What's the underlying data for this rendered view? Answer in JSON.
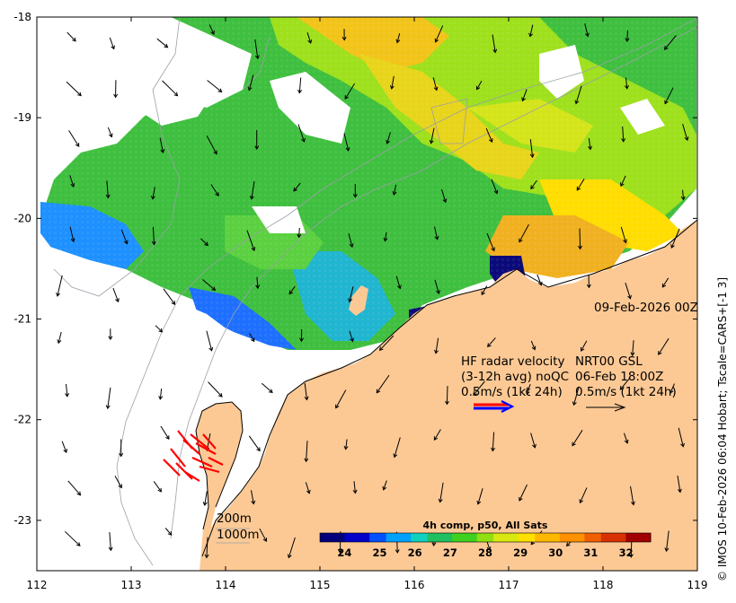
{
  "map": {
    "x_ticks": [
      "112",
      "113",
      "114",
      "115",
      "116",
      "117",
      "118",
      "119"
    ],
    "y_ticks": [
      "-18",
      "-19",
      "-20",
      "-21",
      "-22",
      "-23"
    ],
    "x_range": [
      112,
      119
    ],
    "y_range": [
      -23.5,
      -18
    ],
    "date_label": "09-Feb-2026 00Z",
    "hf_title": "HF radar velocity",
    "hf_avg": "(3-12h avg) noQC",
    "hf_scale": "0.5m/s (1kt 24h)",
    "nrt_title": "NRT00 GSL",
    "nrt_date": "06-Feb 18:00Z",
    "nrt_scale": "0.5m/s (1kt 24h)",
    "depth_200": "200m",
    "depth_1000": "1000m",
    "credit": "© IMOS 10-Feb-2026 06:04 Hobart; Tscale=CARS+[-1 3]",
    "colors": {
      "land": "#fcc995",
      "hf_arrow": "#ff0000",
      "legend_blue": "#0000ff"
    }
  },
  "colorbar": {
    "title": "4h comp, p50, All Sats",
    "ticks": [
      "24",
      "25",
      "26",
      "27",
      "28",
      "29",
      "30",
      "31",
      "32"
    ],
    "range": [
      23.3,
      32.7
    ]
  }
}
